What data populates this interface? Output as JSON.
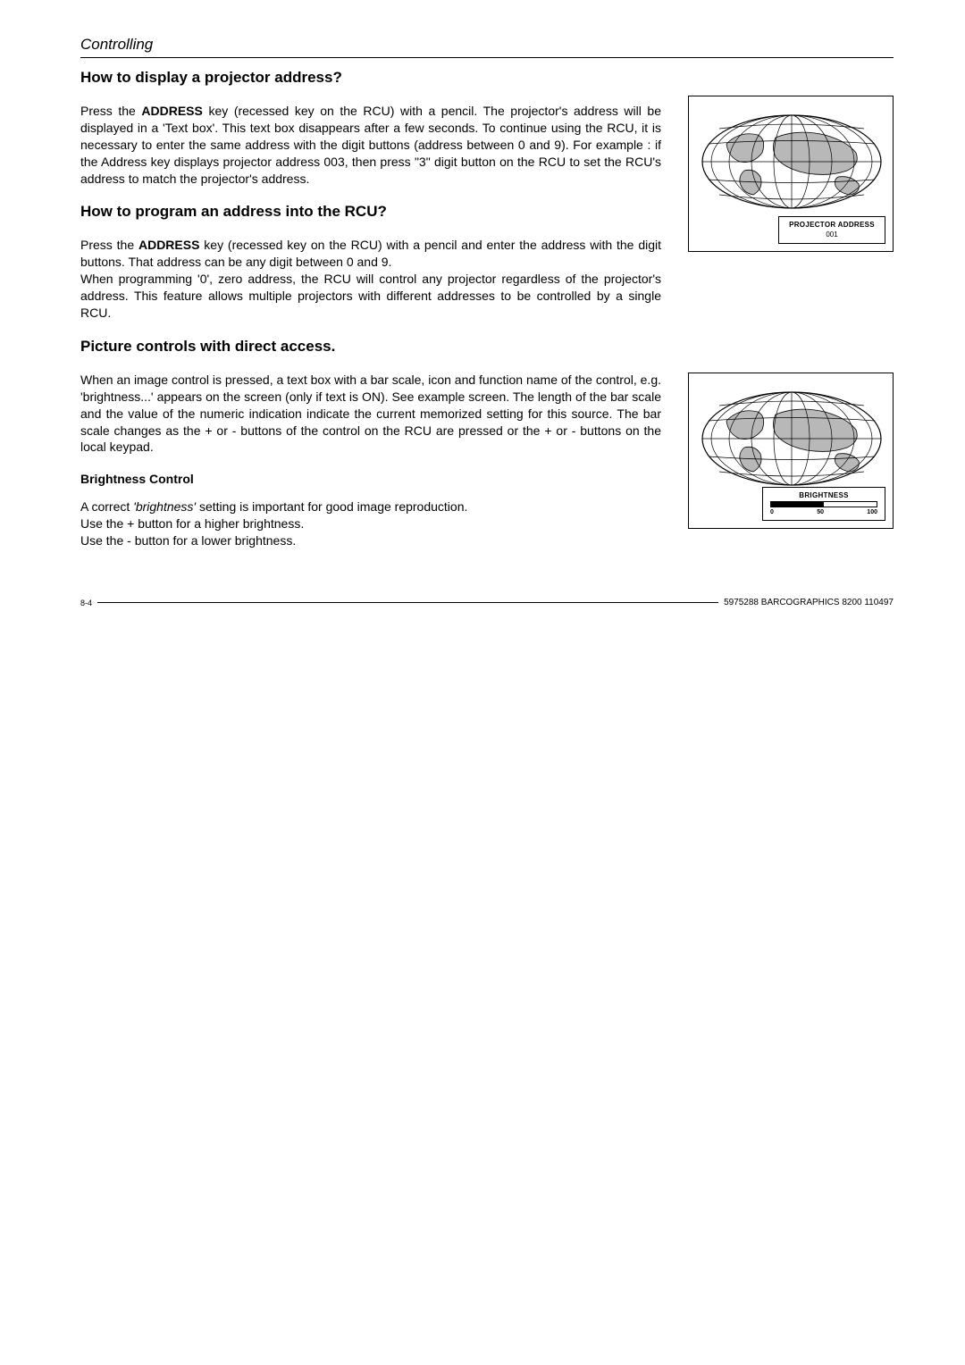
{
  "section_header": "Controlling",
  "headings": {
    "h1": "How to display a projector address?",
    "h2": "How to program an address into the RCU?",
    "h3": "Picture controls with direct access.",
    "sub1": "Brightness Control"
  },
  "paragraphs": {
    "p1a": "Press the ",
    "p1_bold": "ADDRESS",
    "p1b": " key (recessed key on the RCU) with a pencil.  The projector's address will be displayed in a 'Text box'.  This text box disappears after a few seconds. To continue using the RCU, it is necessary to enter the same address with the digit buttons (address between 0 and 9).  For example : if the Address key displays projector address 003, then press \"3\" digit button on the RCU to set the RCU's address to match the projector's address.",
    "p2a": "Press the ",
    "p2_bold": "ADDRESS",
    "p2b": " key (recessed key on the RCU) with a pencil and enter the address with the digit buttons.  That address can be any digit between 0 and 9.",
    "p2c": "When programming '0', zero address, the RCU will control any projector regardless of the projector's address.  This feature allows multiple projectors with different addresses to be controlled by a single RCU.",
    "p3": "When an image control is pressed, a text box with a bar scale, icon and function name of the control, e.g. 'brightness...' appears on the screen (only if text is ON).   See example screen.  The length of the bar scale and the value of the numeric indication indicate the current memorized setting for this source.  The bar scale changes as the + or - buttons of the control on the RCU are pressed  or the + or - buttons on the local keypad.",
    "p4a": "A correct ",
    "p4_ital": "'brightness'",
    "p4b": " setting is important for good image reproduction.",
    "p4c": "Use the + button for a higher brightness.",
    "p4d": "Use the - button for a lower brightness."
  },
  "figure1": {
    "osd_title": "PROJECTOR ADDRESS",
    "osd_value": "001",
    "globe_land_color": "#b8b8b8",
    "globe_line_color": "#000000"
  },
  "figure2": {
    "osd_title": "BRIGHTNESS",
    "bar_fill_percent": 50,
    "bar_labels": [
      "0",
      "50",
      "100"
    ],
    "globe_land_color": "#b8b8b8",
    "globe_line_color": "#000000"
  },
  "footer": {
    "page_num": "8-4",
    "doc_id": "5975288 BARCOGRAPHICS 8200 110497"
  },
  "colors": {
    "text": "#000000",
    "background": "#ffffff",
    "border": "#000000"
  }
}
